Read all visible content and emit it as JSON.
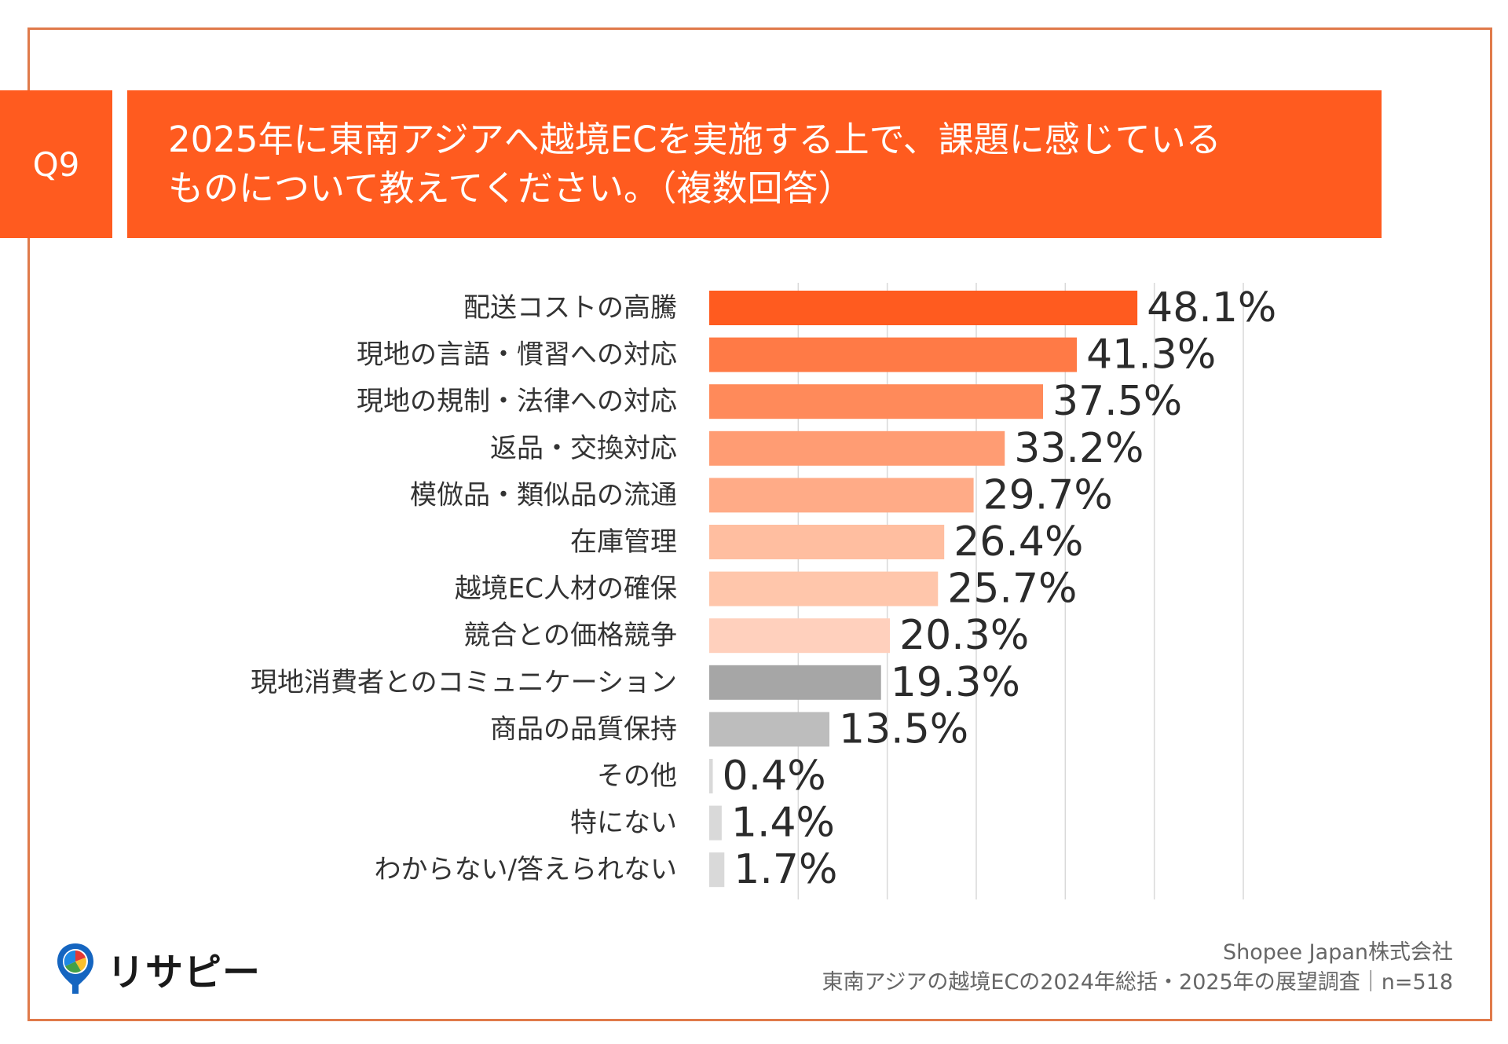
{
  "question": {
    "number": "Q9",
    "title_line1": "2025年に東南アジアへ越境ECを実施する上で、課題に感じている",
    "title_line2": "ものについて教えてください。（複数回答）"
  },
  "footer": {
    "company": "Shopee Japan株式会社",
    "survey": "東南アジアの越境ECの2024年総括・2025年の展望調査｜n=518"
  },
  "logo": {
    "text": "リサピー"
  },
  "colors": {
    "accent": "#ff5b1f",
    "frame": "#e07a4a",
    "bars": [
      "#ff5b1f",
      "#ff7a46",
      "#ff8a5a",
      "#ff9c73",
      "#ffab87",
      "#ffbea0",
      "#ffc6ab",
      "#ffd0bd",
      "#a6a6a6",
      "#bdbdbd",
      "#d9d9d9",
      "#d9d9d9",
      "#d9d9d9"
    ]
  },
  "chart_data": {
    "type": "bar",
    "orientation": "horizontal",
    "categories": [
      "配送コストの高騰",
      "現地の言語・慣習への対応",
      "現地の規制・法律への対応",
      "返品・交換対応",
      "模倣品・類似品の流通",
      "在庫管理",
      "越境EC人材の確保",
      "競合との価格競争",
      "現地消費者とのコミュニケーション",
      "商品の品質保持",
      "その他",
      "特にない",
      "わからない/答えられない"
    ],
    "values": [
      48.1,
      41.3,
      37.5,
      33.2,
      29.7,
      26.4,
      25.7,
      20.3,
      19.3,
      13.5,
      0.4,
      1.4,
      1.7
    ],
    "value_labels": [
      "48.1%",
      "41.3%",
      "37.5%",
      "33.2%",
      "29.7%",
      "26.4%",
      "25.7%",
      "20.3%",
      "19.3%",
      "13.5%",
      "0.4%",
      "1.4%",
      "1.7%"
    ],
    "xlim": [
      0,
      60
    ],
    "grid": true
  }
}
